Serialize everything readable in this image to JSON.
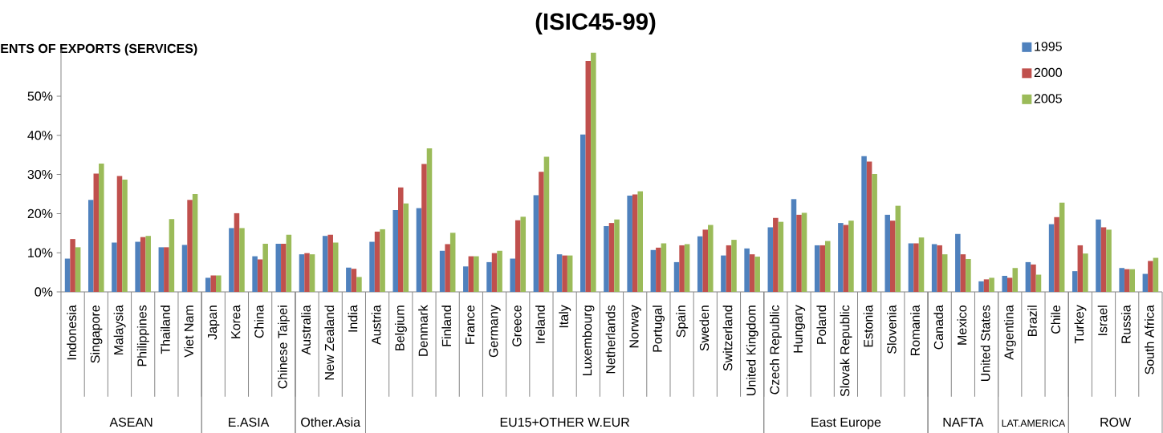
{
  "chart_data": {
    "type": "bar",
    "title": "(ISIC45-99)",
    "ylabel": "ENTS OF EXPORTS (SERVICES)",
    "categories": [
      "Indonesia",
      "Singapore",
      "Malaysia",
      "Philippines",
      "Thailand",
      "Viet Nam",
      "Japan",
      "Korea",
      "China",
      "Chinese Taipei",
      "Australia",
      "New Zealand",
      "India",
      "Austria",
      "Belgium",
      "Denmark",
      "Finland",
      "France",
      "Germany",
      "Greece",
      "Ireland",
      "Italy",
      "Luxembourg",
      "Netherlands",
      "Norway",
      "Portugal",
      "Spain",
      "Sweden",
      "Switzerland",
      "United Kingdom",
      "Czech Republic",
      "Hungary",
      "Poland",
      "Slovak Republic",
      "Estonia",
      "Slovenia",
      "Romania",
      "Canada",
      "Mexico",
      "United States",
      "Argentina",
      "Brazil",
      "Chile",
      "Turkey",
      "Israel",
      "Russia",
      "South Africa"
    ],
    "series": [
      {
        "name": "1995",
        "color": "#4f81bd",
        "values": [
          8.5,
          23.5,
          12.6,
          12.8,
          11.4,
          12.0,
          3.6,
          16.3,
          9.1,
          12.3,
          9.6,
          14.3,
          6.2,
          12.8,
          20.9,
          21.4,
          10.5,
          6.5,
          7.6,
          8.5,
          24.7,
          9.6,
          40.2,
          16.8,
          24.6,
          10.7,
          7.6,
          14.2,
          9.3,
          11.1,
          16.5,
          23.7,
          11.9,
          17.6,
          34.7,
          19.7,
          12.4,
          12.2,
          14.8,
          2.7,
          4.1,
          7.6,
          17.3,
          5.3,
          18.5,
          6.1,
          4.6
        ]
      },
      {
        "name": "2000",
        "color": "#c0504d",
        "values": [
          13.5,
          30.2,
          29.6,
          14.0,
          11.4,
          23.5,
          4.2,
          20.1,
          8.3,
          12.3,
          9.9,
          14.6,
          5.9,
          15.4,
          26.7,
          32.7,
          12.2,
          9.1,
          9.9,
          18.3,
          30.7,
          9.3,
          59.0,
          17.6,
          24.9,
          11.3,
          11.9,
          15.9,
          11.9,
          9.6,
          18.9,
          19.7,
          11.9,
          17.1,
          33.3,
          18.2,
          12.4,
          11.9,
          9.6,
          3.2,
          3.6,
          7.0,
          19.1,
          11.9,
          16.5,
          5.8,
          7.9
        ]
      },
      {
        "name": "2005",
        "color": "#9bbb59",
        "values": [
          11.4,
          32.8,
          28.7,
          14.3,
          18.6,
          25.0,
          4.2,
          16.3,
          12.3,
          14.6,
          9.6,
          12.6,
          3.8,
          16.0,
          22.6,
          36.7,
          15.1,
          9.1,
          10.5,
          19.2,
          34.5,
          9.3,
          61.1,
          18.5,
          25.7,
          12.4,
          12.2,
          17.1,
          13.3,
          9.0,
          17.9,
          20.2,
          13.0,
          18.2,
          30.1,
          22.0,
          13.9,
          9.6,
          8.4,
          3.6,
          6.1,
          4.4,
          22.8,
          9.8,
          15.9,
          5.8,
          8.7
        ]
      }
    ],
    "ylim": [
      0,
      62
    ],
    "yticks": [
      {
        "value": 0,
        "label": "0%"
      },
      {
        "value": 10,
        "label": "10%"
      },
      {
        "value": 20,
        "label": "20%"
      },
      {
        "value": 30,
        "label": "30%"
      },
      {
        "value": 40,
        "label": "40%"
      },
      {
        "value": 50,
        "label": "50%"
      }
    ],
    "legend": "top right",
    "annotations": [
      "ASEAN",
      "E.ASIA",
      "Other.Asia",
      "EU15+OTHER W.EUR",
      "East Europe",
      "NAFTA",
      "LAT.AMERICA",
      "ROW"
    ]
  }
}
